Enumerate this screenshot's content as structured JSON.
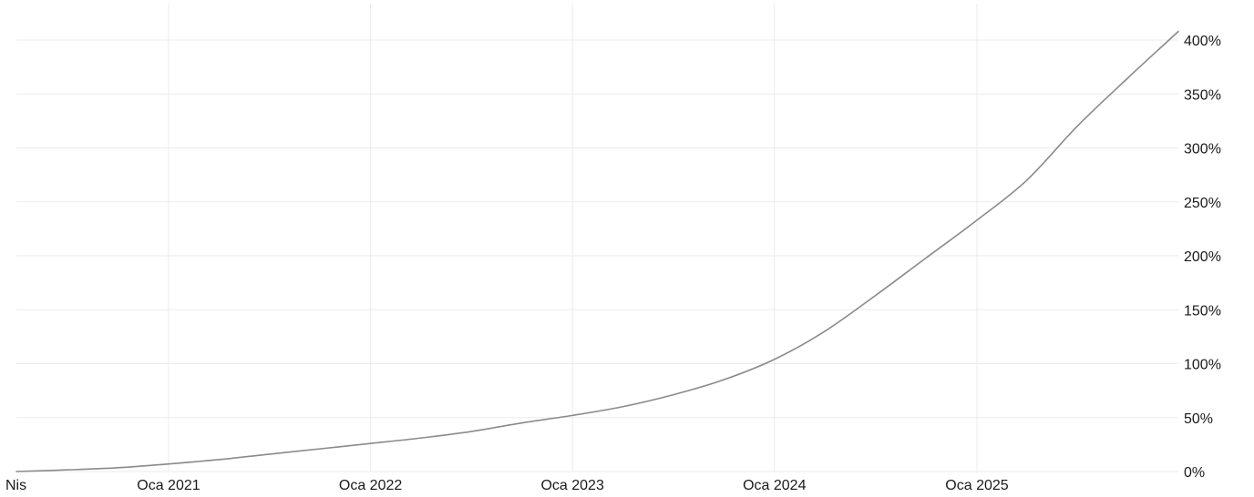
{
  "chart_data": {
    "type": "line",
    "title": "",
    "xlabel": "",
    "ylabel": "",
    "x_tick_labels": [
      "Nis",
      "Oca 2021",
      "Oca 2022",
      "Oca 2023",
      "Oca 2024",
      "Oca 2025"
    ],
    "x_tick_dates": [
      "2020-04-01",
      "2021-01-01",
      "2022-01-01",
      "2023-01-01",
      "2024-01-01",
      "2025-01-01"
    ],
    "y_tick_labels": [
      "0%",
      "50%",
      "100%",
      "150%",
      "200%",
      "250%",
      "300%",
      "350%",
      "400%"
    ],
    "y_tick_values": [
      0,
      50,
      100,
      150,
      200,
      250,
      300,
      350,
      400
    ],
    "ylim": [
      0,
      400
    ],
    "grid": true,
    "y_axis_position": "right",
    "colors": {
      "line": "#8a8a8a",
      "grid": "#ebebeb",
      "text": "#1a1a1a"
    },
    "series": [
      {
        "x": [
          "2020-04-01",
          "2020-07-01",
          "2020-10-01",
          "2021-01-01",
          "2021-04-01",
          "2021-07-01",
          "2021-10-01",
          "2022-01-01",
          "2022-04-01",
          "2022-07-01",
          "2022-10-01",
          "2023-01-01",
          "2023-04-01",
          "2023-07-01",
          "2023-10-01",
          "2024-01-01",
          "2024-04-01",
          "2024-07-01",
          "2024-10-01",
          "2025-01-01",
          "2025-04-01",
          "2025-07-01",
          "2025-10-01",
          "2025-12-31"
        ],
        "values": [
          0,
          1.5,
          3.5,
          7,
          11,
          16,
          21,
          26,
          31,
          37,
          45,
          52,
          60,
          71,
          85,
          104,
          130,
          163,
          198,
          233,
          270,
          320,
          365,
          408
        ]
      }
    ]
  }
}
